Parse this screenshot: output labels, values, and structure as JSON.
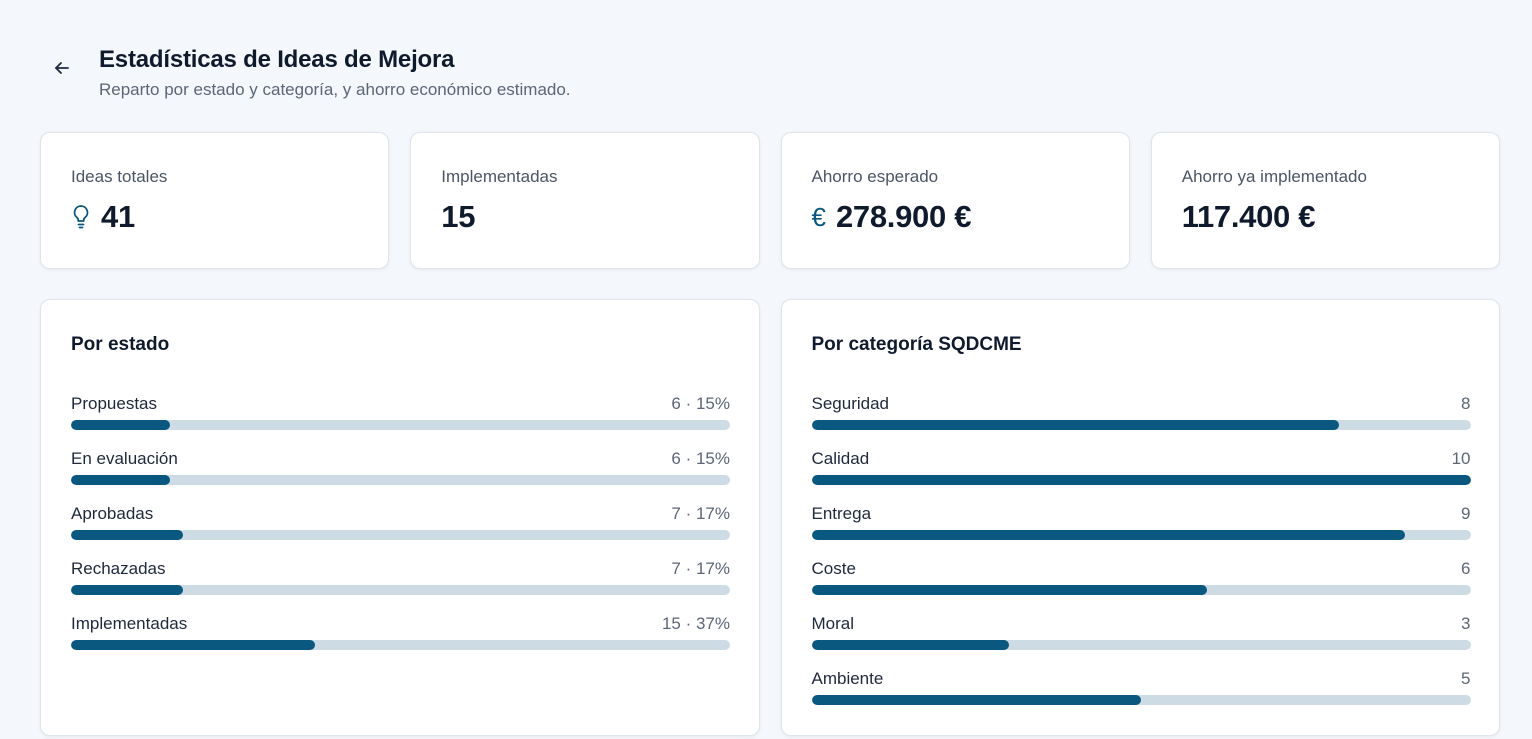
{
  "header": {
    "title": "Estadísticas de Ideas de Mejora",
    "subtitle": "Reparto por estado y categoría, y ahorro económico estimado."
  },
  "kpis": [
    {
      "label": "Ideas totales",
      "value": "41",
      "icon": "lightbulb-icon"
    },
    {
      "label": "Implementadas",
      "value": "15",
      "icon": ""
    },
    {
      "label": "Ahorro esperado",
      "value": "278.900 €",
      "icon": "euro-icon"
    },
    {
      "label": "Ahorro ya implementado",
      "value": "117.400 €",
      "icon": ""
    }
  ],
  "by_status": {
    "title": "Por estado",
    "rows": [
      {
        "label": "Propuestas",
        "value": "6 · 15%",
        "fraction": 0.15
      },
      {
        "label": "En evaluación",
        "value": "6 · 15%",
        "fraction": 0.15
      },
      {
        "label": "Aprobadas",
        "value": "7 · 17%",
        "fraction": 0.17
      },
      {
        "label": "Rechazadas",
        "value": "7 · 17%",
        "fraction": 0.17
      },
      {
        "label": "Implementadas",
        "value": "15 · 37%",
        "fraction": 0.37
      }
    ]
  },
  "by_category": {
    "title": "Por categoría SQDCME",
    "max": 10,
    "rows": [
      {
        "label": "Seguridad",
        "value": "8",
        "count": 8
      },
      {
        "label": "Calidad",
        "value": "10",
        "count": 10
      },
      {
        "label": "Entrega",
        "value": "9",
        "count": 9
      },
      {
        "label": "Coste",
        "value": "6",
        "count": 6
      },
      {
        "label": "Moral",
        "value": "3",
        "count": 3
      },
      {
        "label": "Ambiente",
        "value": "5",
        "count": 5
      }
    ]
  },
  "colors": {
    "accent": "#0a5780",
    "track": "#cddbe4",
    "background": "#f4f7fb"
  }
}
